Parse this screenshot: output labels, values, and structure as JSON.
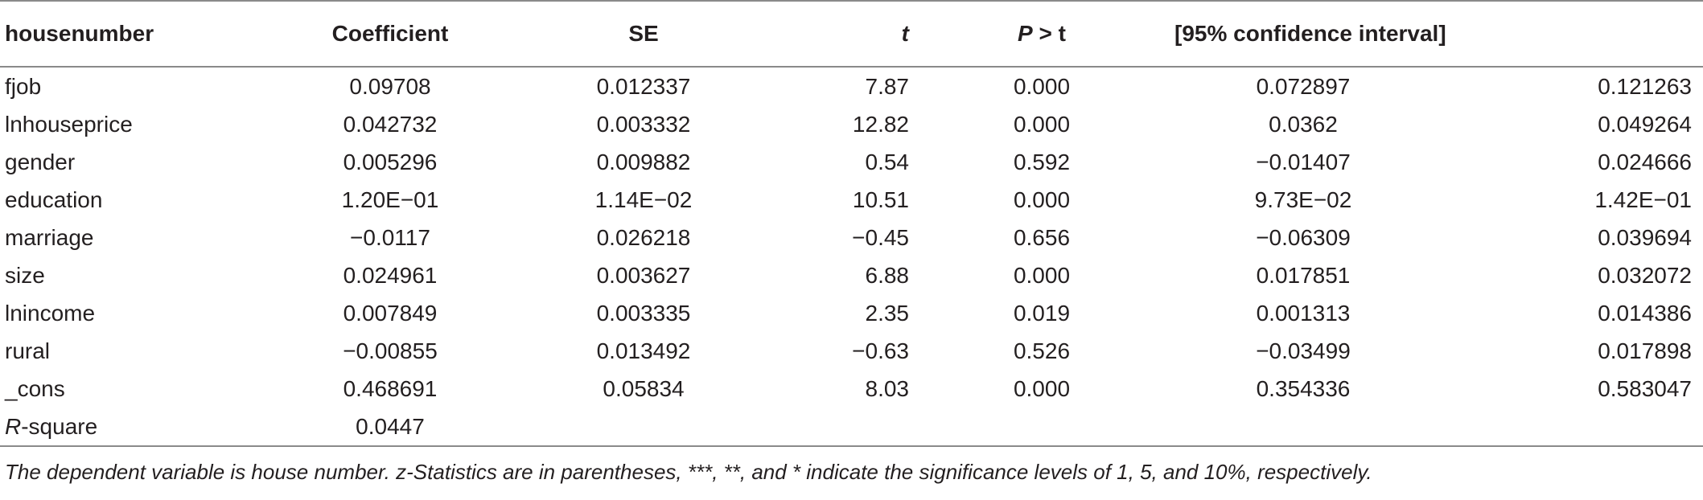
{
  "table": {
    "headers": {
      "var": "housenumber",
      "coef": "Coefficient",
      "se": "SE",
      "t": "t",
      "p_italic": "P",
      "p_rest": " > t",
      "ci": "[95% confidence interval]"
    },
    "rows": [
      {
        "var": "fjob",
        "coef": "0.09708",
        "se": "0.012337",
        "t": "7.87",
        "p": "0.000",
        "ci_low": "0.072897",
        "ci_high": "0.121263"
      },
      {
        "var": "lnhouseprice",
        "coef": "0.042732",
        "se": "0.003332",
        "t": "12.82",
        "p": "0.000",
        "ci_low": "0.0362",
        "ci_high": "0.049264"
      },
      {
        "var": "gender",
        "coef": "0.005296",
        "se": "0.009882",
        "t": "0.54",
        "p": "0.592",
        "ci_low": "−0.01407",
        "ci_high": "0.024666"
      },
      {
        "var": "education",
        "coef": "1.20E−01",
        "se": "1.14E−02",
        "t": "10.51",
        "p": "0.000",
        "ci_low": "9.73E−02",
        "ci_high": "1.42E−01"
      },
      {
        "var": "marriage",
        "coef": "−0.0117",
        "se": "0.026218",
        "t": "−0.45",
        "p": "0.656",
        "ci_low": "−0.06309",
        "ci_high": "0.039694"
      },
      {
        "var": "size",
        "coef": "0.024961",
        "se": "0.003627",
        "t": "6.88",
        "p": "0.000",
        "ci_low": "0.017851",
        "ci_high": "0.032072"
      },
      {
        "var": "lnincome",
        "coef": "0.007849",
        "se": "0.003335",
        "t": "2.35",
        "p": "0.019",
        "ci_low": "0.001313",
        "ci_high": "0.014386"
      },
      {
        "var": "rural",
        "coef": "−0.00855",
        "se": "0.013492",
        "t": "−0.63",
        "p": "0.526",
        "ci_low": "−0.03499",
        "ci_high": "0.017898"
      },
      {
        "var": "_cons",
        "coef": "0.468691",
        "se": "0.05834",
        "t": "8.03",
        "p": "0.000",
        "ci_low": "0.354336",
        "ci_high": "0.583047"
      }
    ],
    "rsquare": {
      "label_italic": "R",
      "label_rest": "-square",
      "value": "0.0447"
    }
  },
  "footnote": "The dependent variable is house number. z-Statistics are in parentheses, ***, **, and * indicate the significance levels of 1, 5, and 10%, respectively."
}
